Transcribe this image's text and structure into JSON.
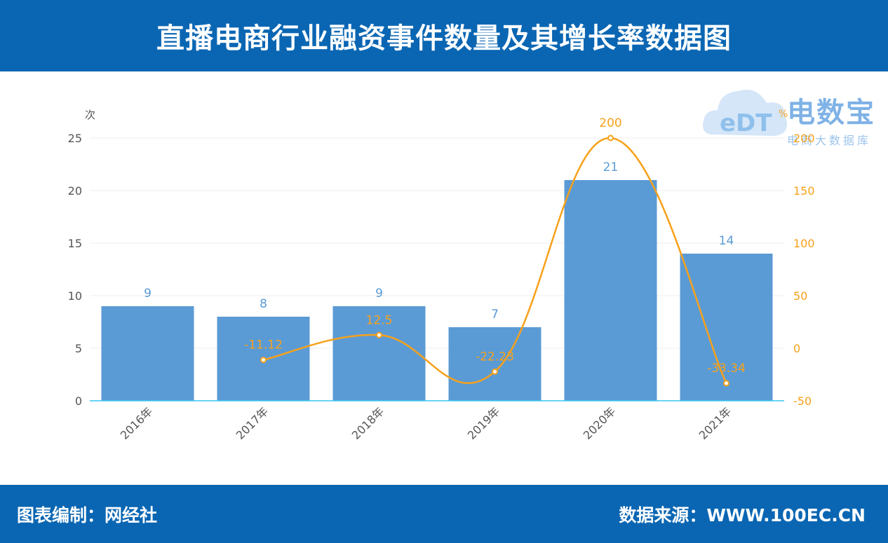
{
  "header": {
    "title": "直播电商行业融资事件数量及其增长率数据图"
  },
  "footer": {
    "left": "图表编制：网经社",
    "right": "数据来源：WWW.100EC.CN"
  },
  "watermark": {
    "logo_text": "eDT",
    "name": "电数宝",
    "subtitle": "电商大数据库"
  },
  "colors": {
    "header_bg": "#0a66b3",
    "bar": "#5b9bd5",
    "line": "#f7a11a",
    "bar_label": "#5b9bd5"
  },
  "chart_data": {
    "type": "bar",
    "categories": [
      "2016年",
      "2017年",
      "2018年",
      "2019年",
      "2020年",
      "2021年"
    ],
    "series": [
      {
        "type": "bar",
        "axis": "left",
        "values": [
          9,
          8,
          9,
          7,
          21,
          14
        ]
      },
      {
        "type": "line",
        "axis": "right",
        "values": [
          null,
          -11.12,
          12.5,
          -22.23,
          200,
          -33.34
        ]
      }
    ],
    "y_left": {
      "unit": "次",
      "min": 0,
      "max": 25,
      "ticks": [
        0,
        5,
        10,
        15,
        20,
        25
      ]
    },
    "y_right": {
      "unit": "%",
      "min": -50,
      "max": 200,
      "ticks": [
        -50,
        0,
        50,
        100,
        150,
        200
      ]
    },
    "data_labels": true,
    "grid": true
  }
}
